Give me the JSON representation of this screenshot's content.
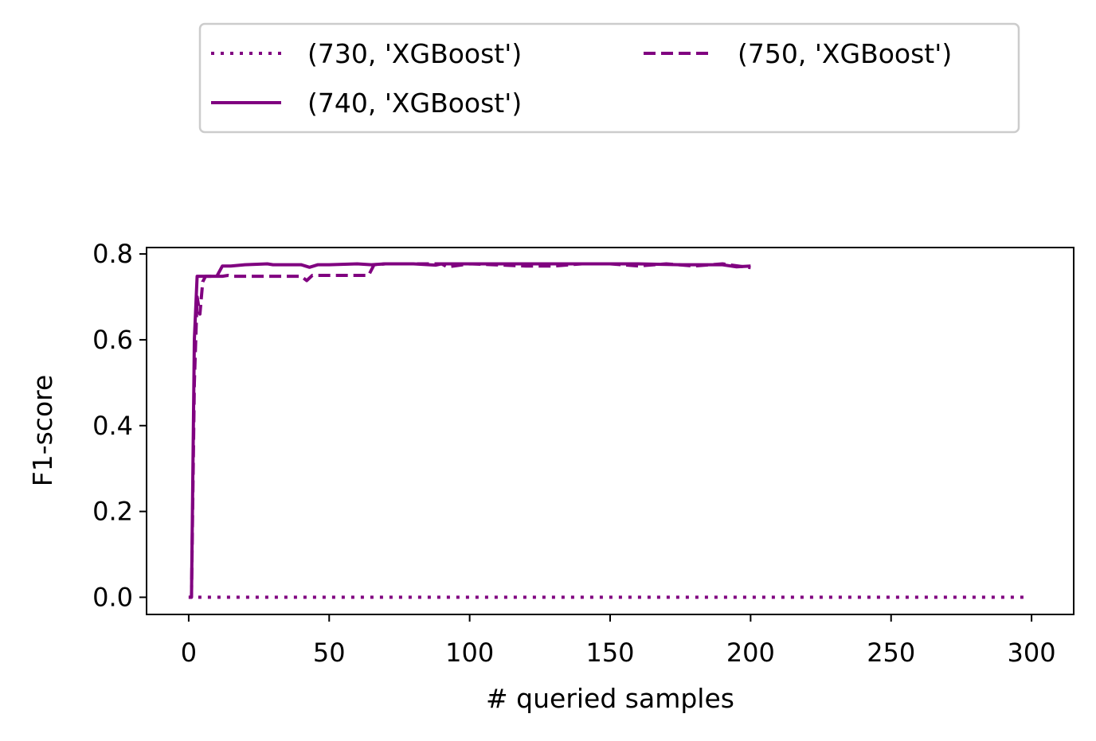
{
  "chart_data": {
    "type": "line",
    "title": "",
    "xlabel": "# queried samples",
    "ylabel": "F1-score",
    "xlim": [
      -15,
      315
    ],
    "ylim": [
      -0.04,
      0.815
    ],
    "xticks": [
      0,
      50,
      100,
      150,
      200,
      250,
      300
    ],
    "xtick_labels": [
      "0",
      "50",
      "100",
      "150",
      "200",
      "250",
      "300"
    ],
    "yticks": [
      0.0,
      0.2,
      0.4,
      0.6,
      0.8
    ],
    "ytick_labels": [
      "0.0",
      "0.2",
      "0.4",
      "0.6",
      "0.8"
    ],
    "grid": false,
    "legend": {
      "placement": "above plot, 2 columns",
      "columns": 2
    },
    "series": [
      {
        "name": "(730, 'XGBoost')",
        "color": "#800080",
        "linestyle": "dotted",
        "x": [
          0,
          50,
          100,
          150,
          200,
          250,
          299
        ],
        "y": [
          0.0,
          0.0,
          0.0,
          0.0,
          0.0,
          0.0,
          0.0
        ]
      },
      {
        "name": "(740, 'XGBoost')",
        "color": "#800080",
        "linestyle": "solid",
        "x": [
          0,
          1,
          2,
          3,
          10,
          12,
          15,
          20,
          28,
          30,
          40,
          43,
          46,
          50,
          60,
          65,
          70,
          80,
          88,
          90,
          100,
          120,
          130,
          150,
          160,
          175,
          190,
          195,
          200
        ],
        "y": [
          0.0,
          0.0,
          0.6,
          0.748,
          0.748,
          0.772,
          0.772,
          0.775,
          0.777,
          0.775,
          0.775,
          0.769,
          0.775,
          0.775,
          0.777,
          0.775,
          0.777,
          0.777,
          0.774,
          0.777,
          0.777,
          0.777,
          0.777,
          0.777,
          0.777,
          0.775,
          0.775,
          0.77,
          0.772
        ]
      },
      {
        "name": "(750, 'XGBoost')",
        "color": "#800080",
        "linestyle": "dashed",
        "x": [
          1,
          2,
          3,
          4,
          5,
          6,
          12,
          14,
          16,
          25,
          40,
          42,
          44,
          50,
          60,
          64,
          66,
          70,
          90,
          92,
          100,
          120,
          130,
          140,
          150,
          160,
          170,
          180,
          190,
          200
        ],
        "y": [
          0.0,
          0.5,
          0.7,
          0.66,
          0.735,
          0.748,
          0.748,
          0.75,
          0.748,
          0.748,
          0.748,
          0.738,
          0.75,
          0.75,
          0.75,
          0.75,
          0.775,
          0.777,
          0.777,
          0.77,
          0.777,
          0.772,
          0.772,
          0.777,
          0.777,
          0.772,
          0.777,
          0.772,
          0.777,
          0.768
        ]
      }
    ]
  }
}
